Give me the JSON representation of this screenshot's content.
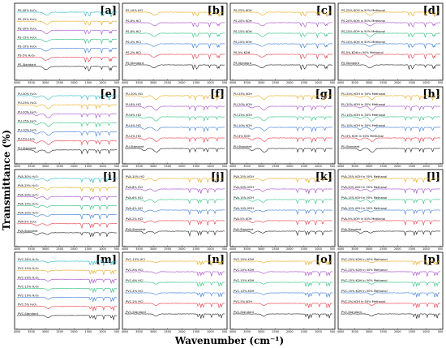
{
  "colors": {
    "trace_palette": [
      "#e6a817",
      "#a64ac9",
      "#2ec27e",
      "#3a7bd5",
      "#e63946",
      "#222222"
    ],
    "trace_palette_7": [
      "#29b6c6",
      "#e6a817",
      "#a64ac9",
      "#2ec27e",
      "#3a7bd5",
      "#e63946",
      "#222222"
    ]
  },
  "chart_data": {
    "type": "line",
    "ylabel": "Transmittance (%)",
    "xlabel": "Wavenumber (cm⁻¹)",
    "x_ticks": [
      "4000",
      "3500",
      "3000",
      "2500",
      "2000",
      "1500",
      "1000",
      "500"
    ],
    "xlim": [
      4000,
      500
    ],
    "panels": [
      {
        "label": "[a]",
        "polymer": "PS",
        "series": [
          "PS-30% H₂O₂",
          "PS-25% H₂O₂",
          "PS-20% H₂O₂",
          "PS-15% H₂O₂",
          "PS-10% H₂O₂",
          "PS-5% H₂O₂",
          "PS-Standard"
        ]
      },
      {
        "label": "[b]",
        "polymer": "PS",
        "series": [
          "PS-10% HCl",
          "PS-8% HCl",
          "PS-6% HCl",
          "PS-4% HCl",
          "PS-2% HCl",
          "PS-Standard"
        ]
      },
      {
        "label": "[c]",
        "polymer": "PS",
        "series": [
          "PS-25% KOH",
          "PS-20% KOH",
          "PS-15% KOH",
          "PS-10% KOH",
          "PS-5% KOH",
          "PS-Standard"
        ]
      },
      {
        "label": "[d]",
        "polymer": "PS",
        "series": [
          "PS-25% KOH in 50% Methanol",
          "PS-20% KOH in 50% Methanol",
          "PS-15% KOH in 50% Methanol",
          "PS-10% KOH in 50% Methanol",
          "PS-5% KOH in 50% Methanol",
          "PS-Standard"
        ]
      },
      {
        "label": "[e]",
        "polymer": "PU",
        "series": [
          "PU-30% H₂O₂",
          "PU-25% H₂O₂",
          "PU-20% H₂O₂",
          "PU-15% H₂O₂",
          "PU-10% H₂O₂",
          "PU-5% H₂O₂",
          "PU-Standard"
        ]
      },
      {
        "label": "[f]",
        "polymer": "PU",
        "series": [
          "PU-10% HCl",
          "PU-8% HCl",
          "PU-6% HCl",
          "PU-4% HCl",
          "PU-2% HCl",
          "PU-Standard"
        ]
      },
      {
        "label": "[g]",
        "polymer": "PU",
        "series": [
          "PU-25% KOH",
          "PU-20% KOH",
          "PU-15% KOH",
          "PU-10% KOH",
          "PU-5% KOH",
          "PU-Standard"
        ]
      },
      {
        "label": "[h]",
        "polymer": "PU",
        "series": [
          "PU-25% KOH in 50% Methanol",
          "PU-20% KOH in 50% Methanol",
          "PU-15% KOH in 50% Methanol",
          "PU-10% KOH in 50% Methanol",
          "PU-5% KOH in 50% Methanol",
          "PU-Standard"
        ]
      },
      {
        "label": "[i]",
        "polymer": "PVA",
        "series": [
          "PVA-30% H₂O₂",
          "PVA-25% H₂O₂",
          "PVA-20% H₂O₂",
          "PVA-15% H₂O₂",
          "PVA-10% H₂O₂",
          "PVA-5% H₂O₂",
          "PVA-Standard"
        ]
      },
      {
        "label": "[j]",
        "polymer": "PVA",
        "series": [
          "PVA-10% HCl",
          "PVA-8% HCl",
          "PVA-6% HCl",
          "PVA-4% HCl",
          "PVA-2% HCl",
          "PVA-Standard"
        ]
      },
      {
        "label": "[k]",
        "polymer": "PVA",
        "series": [
          "PVA-25% KOH",
          "PVA-20% KOH",
          "PVA-15% KOH",
          "PVA-10% KOH",
          "PVA-5% KOH",
          "PVA-Standard"
        ]
      },
      {
        "label": "[l]",
        "polymer": "PVA",
        "series": [
          "PVA-25% KOH in 50% Methanol",
          "PVA-20% KOH in 50% Methanol",
          "PVA-15% KOH in 50% Methanol",
          "PVA-10% KOH in 50% Methanol",
          "PVA-5% KOH in 50% Methanol",
          "PVA-Standard"
        ]
      },
      {
        "label": "[m]",
        "polymer": "PVC",
        "series": [
          "PVC-30% H₂O₂",
          "PVC-25% H₂O₂",
          "PVC-20% H₂O₂",
          "PVC-15% H₂O₂",
          "PVC-10% H₂O₂",
          "PVC-5% H₂O₂",
          "PVC-Standard"
        ]
      },
      {
        "label": "[n]",
        "polymer": "PVC",
        "series": [
          "PVC-10% HCl",
          "PVC-8% HCl",
          "PVC-6% HCl",
          "PVC-4% HCl",
          "PVC-2% HCl",
          "PVC-Standard"
        ]
      },
      {
        "label": "[o]",
        "polymer": "PVC",
        "series": [
          "PVC-25% KOH",
          "PVC-20% KOH",
          "PVC-15% KOH",
          "PVC-10% KOH",
          "PVC-5% KOH",
          "PVC-Standard"
        ]
      },
      {
        "label": "[p]",
        "polymer": "PVC",
        "series": [
          "PVC-25% KOH in 50% Methanol",
          "PVC-20% KOH in 50% Methanol",
          "PVC-15% KOH in 50% Methanol",
          "PVC-10% KOH in 50% Methanol",
          "PVC-5% KOH in 50% Methanol",
          "PVC-Standard"
        ]
      }
    ]
  }
}
